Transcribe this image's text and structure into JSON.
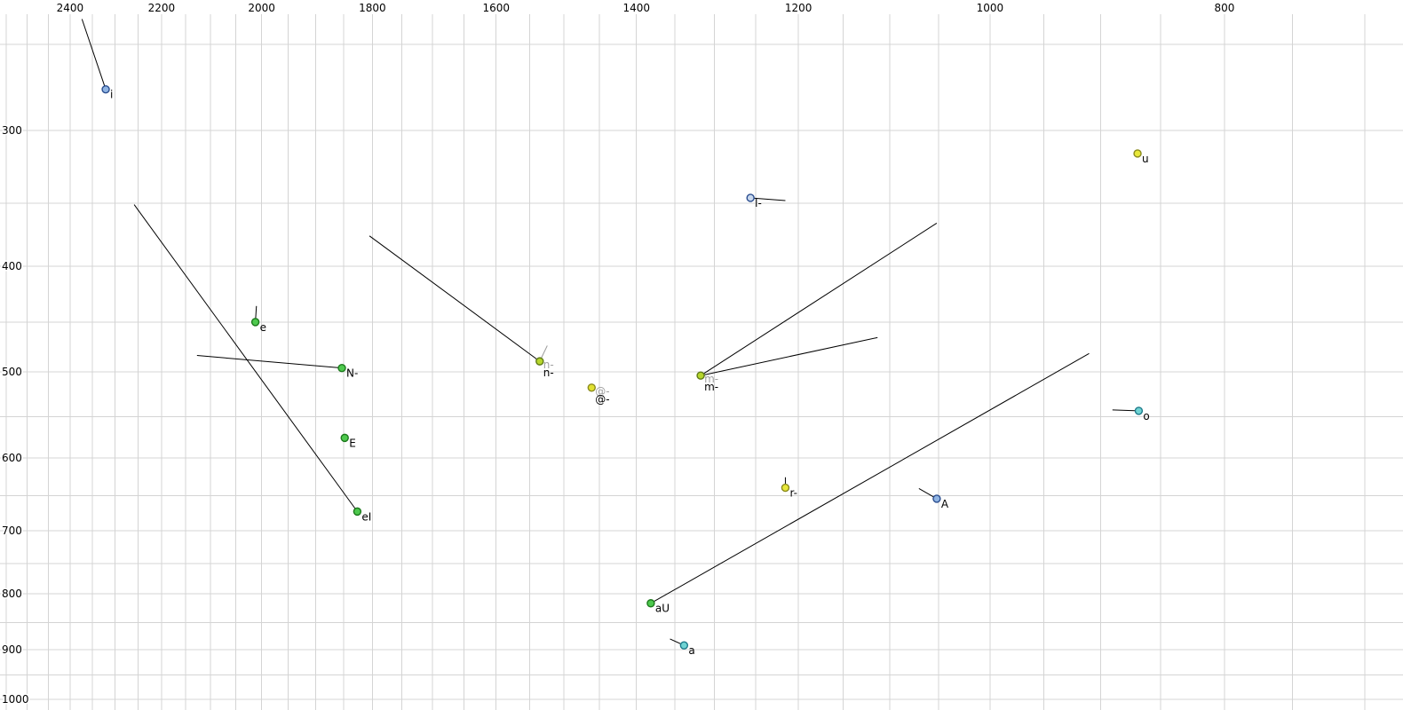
{
  "chart_data": {
    "type": "scatter",
    "title": "",
    "xlabel": "",
    "ylabel": "",
    "x_axis": {
      "scale": "log",
      "reversed": true,
      "range": [
        2564,
        675
      ],
      "tick_values": [
        2400,
        2200,
        2000,
        1800,
        1600,
        1400,
        1200,
        1000,
        800
      ],
      "grid_min": 700,
      "grid_max": 2550,
      "grid_step": 50
    },
    "y_axis": {
      "scale": "log",
      "reversed": true,
      "range": [
        228,
        1023
      ],
      "tick_values": [
        300,
        400,
        500,
        600,
        700,
        800,
        900,
        1000
      ],
      "grid_min": 250,
      "grid_max": 1000,
      "grid_step": 50
    },
    "colors": {
      "background": "#ffffff",
      "grid": "#d4d4d4",
      "tick_text": "#000000",
      "ghost_text": "#a0a0a0",
      "tail": "#000000",
      "ghost_tail": "#999999"
    },
    "points": [
      {
        "label": "i",
        "f2": 2320,
        "f1": 275,
        "fill": "#8fb4e3",
        "stroke": "#2a4d8f",
        "ghost_label": false,
        "tails": [
          {
            "f2": 2373,
            "f1": 237,
            "color": "#000000"
          }
        ]
      },
      {
        "label": "u",
        "f2": 869,
        "f1": 315,
        "fill": "#e8e83a",
        "stroke": "#8a8a1d",
        "ghost_label": false,
        "tails": []
      },
      {
        "label": "l-",
        "f2": 1256,
        "f1": 346,
        "fill": "#c8d8ee",
        "stroke": "#2a4d8f",
        "ghost_label": false,
        "tails": [
          {
            "f2": 1215,
            "f1": 348,
            "color": "#000000"
          }
        ]
      },
      {
        "label": "e",
        "f2": 2012,
        "f1": 450,
        "fill": "#4ec94e",
        "stroke": "#1d7a1d",
        "ghost_label": false,
        "tails": [
          {
            "f2": 2010,
            "f1": 435,
            "color": "#000000"
          }
        ]
      },
      {
        "label": "N-",
        "f2": 1853,
        "f1": 496,
        "fill": "#4ec94e",
        "stroke": "#1d7a1d",
        "ghost_label": false,
        "tails": [
          {
            "f2": 2127,
            "f1": 483,
            "color": "#000000"
          }
        ]
      },
      {
        "label": "n-",
        "f2": 1535,
        "f1": 489,
        "fill": "#b6d62c",
        "stroke": "#5f7a16",
        "ghost_label": true,
        "tails": [
          {
            "f2": 1805,
            "f1": 375,
            "color": "#000000"
          },
          {
            "f2": 1524,
            "f1": 473,
            "color": "#999999"
          }
        ]
      },
      {
        "label": "@-",
        "f2": 1461,
        "f1": 517,
        "fill": "#e0e030",
        "stroke": "#8a8a1d",
        "ghost_label": true,
        "tails": []
      },
      {
        "label": "m-",
        "f2": 1317,
        "f1": 504,
        "fill": "#b6d62c",
        "stroke": "#5f7a16",
        "ghost_label": true,
        "tails": [
          {
            "f2": 1052,
            "f1": 365,
            "color": "#000000"
          },
          {
            "f2": 1113,
            "f1": 465,
            "color": "#000000"
          }
        ]
      },
      {
        "label": "o",
        "f2": 868,
        "f1": 543,
        "fill": "#6fd3d3",
        "stroke": "#1d7a8a",
        "ghost_label": false,
        "tails": [
          {
            "f2": 890,
            "f1": 542,
            "color": "#000000"
          }
        ]
      },
      {
        "label": "E",
        "f2": 1848,
        "f1": 575,
        "fill": "#4ec94e",
        "stroke": "#1d7a1d",
        "ghost_label": false,
        "tails": []
      },
      {
        "label": "r-",
        "f2": 1215,
        "f1": 639,
        "fill": "#e8e83a",
        "stroke": "#8a8a1d",
        "ghost_label": false,
        "tails": [
          {
            "f2": 1215,
            "f1": 625,
            "color": "#000000"
          }
        ]
      },
      {
        "label": "A",
        "f2": 1052,
        "f1": 654,
        "fill": "#8fb4e3",
        "stroke": "#2a4d8f",
        "ghost_label": false,
        "tails": [
          {
            "f2": 1070,
            "f1": 640,
            "color": "#000000"
          }
        ]
      },
      {
        "label": "eI",
        "f2": 1826,
        "f1": 672,
        "fill": "#4ec94e",
        "stroke": "#1d7a1d",
        "ghost_label": false,
        "tails": [
          {
            "f2": 2258,
            "f1": 351,
            "color": "#000000"
          }
        ]
      },
      {
        "label": "aU",
        "f2": 1381,
        "f1": 816,
        "fill": "#4ec94e",
        "stroke": "#1d7a1d",
        "ghost_label": false,
        "tails": [
          {
            "f2": 910,
            "f1": 481,
            "color": "#000000"
          }
        ]
      },
      {
        "label": "a",
        "f2": 1338,
        "f1": 892,
        "fill": "#6fd3d3",
        "stroke": "#1d7a8a",
        "ghost_label": false,
        "tails": [
          {
            "f2": 1356,
            "f1": 880,
            "color": "#000000"
          }
        ]
      }
    ]
  }
}
